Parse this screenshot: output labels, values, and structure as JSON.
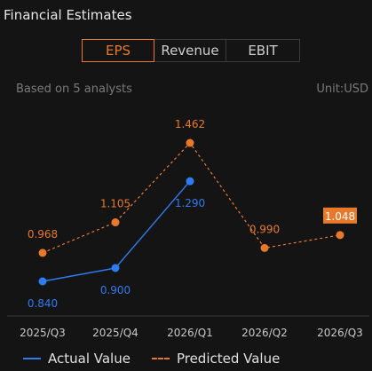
{
  "header": {
    "title": "Financial Estimates"
  },
  "tabs": [
    {
      "label": "EPS",
      "active": true
    },
    {
      "label": "Revenue",
      "active": false
    },
    {
      "label": "EBIT",
      "active": false
    }
  ],
  "info": {
    "analysts": "Based on 5 analysts",
    "unit": "Unit:USD"
  },
  "colors": {
    "actual": "#2f7bf0",
    "predicted": "#e8792a",
    "axis": "#3a3a3a"
  },
  "chart_data": {
    "type": "line",
    "categories": [
      "2025/Q3",
      "2025/Q4",
      "2026/Q1",
      "2026/Q2",
      "2026/Q3"
    ],
    "series": [
      {
        "name": "Actual Value",
        "values": [
          0.84,
          0.9,
          1.29,
          null,
          null
        ],
        "labels": [
          "0.840",
          "0.900",
          "1.290",
          "",
          ""
        ]
      },
      {
        "name": "Predicted Value",
        "values": [
          0.968,
          1.105,
          1.462,
          0.99,
          1.048
        ],
        "labels": [
          "0.968",
          "1.105",
          "1.462",
          "0.990",
          "1.048"
        ]
      }
    ],
    "highlight_label_index": 4,
    "grid": false,
    "legend_position": "bottom-left"
  }
}
